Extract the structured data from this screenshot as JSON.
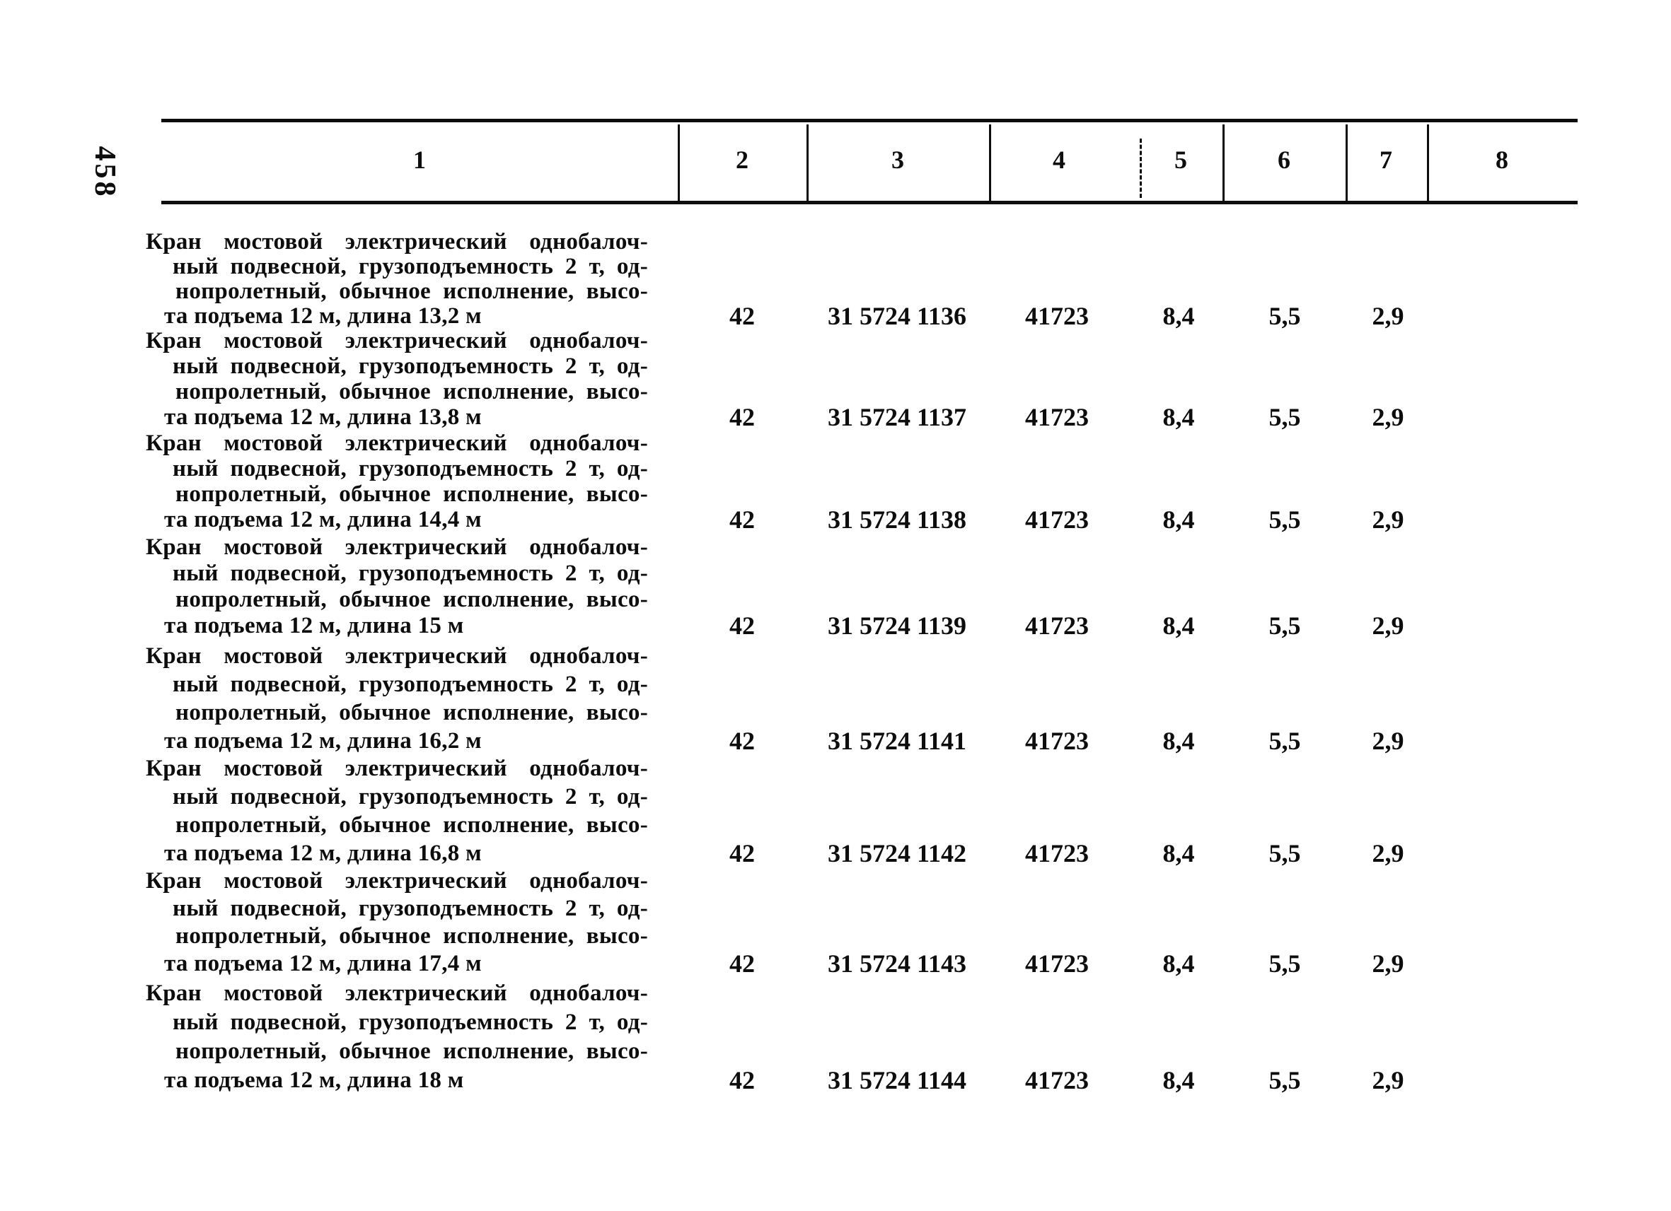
{
  "page": {
    "page_number": "458"
  },
  "table": {
    "column_headers": [
      "1",
      "2",
      "3",
      "4",
      "5",
      "6",
      "7",
      "8"
    ],
    "rows": [
      {
        "description_lines": [
          "Кран мостовой электрический однобалоч-",
          "ный подвесной, грузоподъемность 2 т, од-",
          "нопролетный, обычное исполнение, высо-",
          "та подъема 12 м, длина 13,2 м"
        ],
        "values": {
          "col2": "42",
          "col3": "31 5724 1136",
          "col4": "41723",
          "col5": "8,4",
          "col6": "5,5",
          "col7": "2,9",
          "col8": ""
        }
      },
      {
        "description_lines": [
          "Кран мостовой электрический однобалоч-",
          "ный подвесной, грузоподъемность 2 т, од-",
          "нопролетный, обычное исполнение, высо-",
          "та подъема 12 м, длина 13,8 м"
        ],
        "values": {
          "col2": "42",
          "col3": "31 5724 1137",
          "col4": "41723",
          "col5": "8,4",
          "col6": "5,5",
          "col7": "2,9",
          "col8": ""
        }
      },
      {
        "description_lines": [
          "Кран мостовой электрический однобалоч-",
          "ный подвесной, грузоподъемность 2 т, од-",
          "нопролетный, обычное исполнение, высо-",
          "та подъема 12 м, длина 14,4 м"
        ],
        "values": {
          "col2": "42",
          "col3": "31 5724 1138",
          "col4": "41723",
          "col5": "8,4",
          "col6": "5,5",
          "col7": "2,9",
          "col8": ""
        }
      },
      {
        "description_lines": [
          "Кран мостовой электрический однобалоч-",
          "ный подвесной, грузоподъемность 2 т, од-",
          "нопролетный, обычное исполнение, высо-",
          "та подъема 12 м, длина 15 м"
        ],
        "values": {
          "col2": "42",
          "col3": "31 5724 1139",
          "col4": "41723",
          "col5": "8,4",
          "col6": "5,5",
          "col7": "2,9",
          "col8": ""
        }
      },
      {
        "description_lines": [
          "Кран мостовой электрический однобалоч-",
          "ный подвесной, грузоподъемность 2 т, од-",
          "нопролетный, обычное исполнение, высо-",
          "та подъема 12 м, длина 16,2 м"
        ],
        "values": {
          "col2": "42",
          "col3": "31 5724 1141",
          "col4": "41723",
          "col5": "8,4",
          "col6": "5,5",
          "col7": "2,9",
          "col8": ""
        }
      },
      {
        "description_lines": [
          "Кран мостовой электрический однобалоч-",
          "ный подвесной, грузоподъемность 2 т, од-",
          "нопролетный, обычное исполнение, высо-",
          "та подъема 12 м, длина 16,8 м"
        ],
        "values": {
          "col2": "42",
          "col3": "31 5724 1142",
          "col4": "41723",
          "col5": "8,4",
          "col6": "5,5",
          "col7": "2,9",
          "col8": ""
        }
      },
      {
        "description_lines": [
          "Кран мостовой электрический однобалоч-",
          "ный подвесной, грузоподъемность 2 т, од-",
          "нопролетный, обычное исполнение, высо-",
          "та подъема 12 м, длина 17,4 м"
        ],
        "values": {
          "col2": "42",
          "col3": "31 5724 1143",
          "col4": "41723",
          "col5": "8,4",
          "col6": "5,5",
          "col7": "2,9",
          "col8": ""
        }
      },
      {
        "description_lines": [
          "Кран мостовой электрический однобалоч-",
          "ный подвесной, грузоподъемность 2 т, од-",
          "нопролетный, обычное исполнение, высо-",
          "та подъема 12 м, длина 18 м"
        ],
        "values": {
          "col2": "42",
          "col3": "31 5724 1144",
          "col4": "41723",
          "col5": "8,4",
          "col6": "5,5",
          "col7": "2,9",
          "col8": ""
        }
      }
    ]
  }
}
